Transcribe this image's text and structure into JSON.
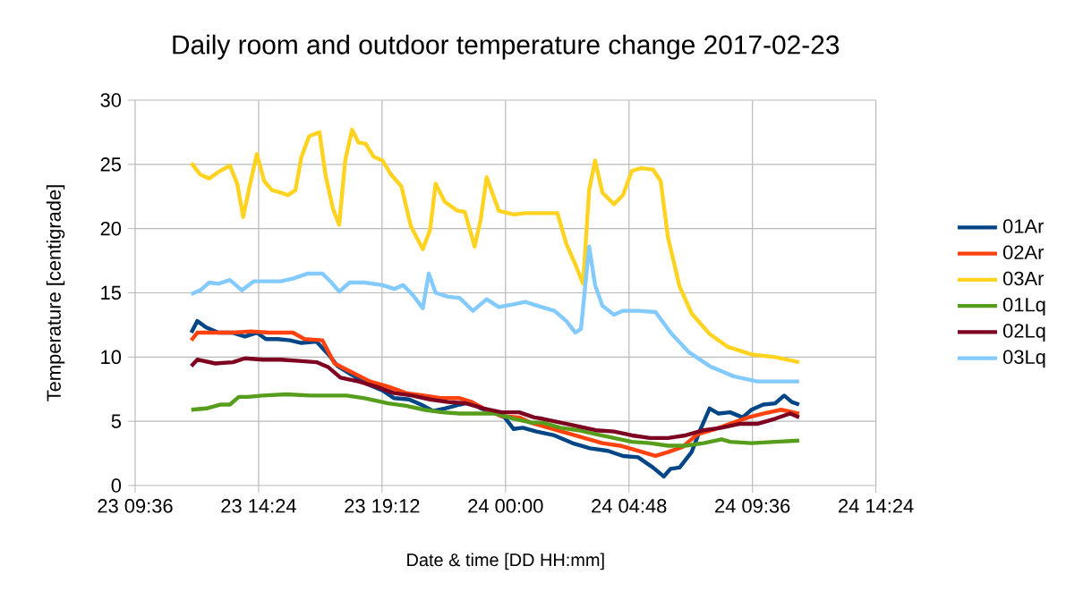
{
  "chart_data": {
    "type": "line",
    "title": "Daily room and outdoor temperature change 2017-02-23",
    "xlabel": "Date & time [DD HH:mm]",
    "ylabel": "Temperature [centigrade]",
    "xlim": [
      "2017-02-23T09:36",
      "2017-02-24T14:24"
    ],
    "ylim": [
      0,
      30
    ],
    "xticks": [
      {
        "value": "2017-02-23T09:36",
        "label": "23 09:36"
      },
      {
        "value": "2017-02-23T14:24",
        "label": "23 14:24"
      },
      {
        "value": "2017-02-23T19:12",
        "label": "23 19:12"
      },
      {
        "value": "2017-02-24T00:00",
        "label": "24 00:00"
      },
      {
        "value": "2017-02-24T04:48",
        "label": "24 04:48"
      },
      {
        "value": "2017-02-24T09:36",
        "label": "24 09:36"
      },
      {
        "value": "2017-02-24T14:24",
        "label": "24 14:24"
      }
    ],
    "yticks": [
      0,
      5,
      10,
      15,
      20,
      25,
      30
    ],
    "grid": true,
    "legend": "right",
    "line_style": "solid",
    "series": [
      {
        "name": "01Ar",
        "color": "#004586",
        "x": [
          "2017-02-23T11:47",
          "2017-02-23T12:01",
          "2017-02-23T12:22",
          "2017-02-23T12:50",
          "2017-02-23T13:24",
          "2017-02-23T13:52",
          "2017-02-23T14:20",
          "2017-02-23T14:41",
          "2017-02-23T15:09",
          "2017-02-23T15:37",
          "2017-02-23T16:04",
          "2017-02-23T16:39",
          "2017-02-23T17:07",
          "2017-02-23T17:28",
          "2017-02-23T18:02",
          "2017-02-23T18:37",
          "2017-02-23T19:13",
          "2017-02-23T19:40",
          "2017-02-23T20:15",
          "2017-02-23T20:43",
          "2017-02-23T21:11",
          "2017-02-23T21:38",
          "2017-02-23T22:13",
          "2017-02-23T22:41",
          "2017-02-23T23:02",
          "2017-02-23T23:37",
          "2017-02-23T23:58",
          "2017-02-24T00:19",
          "2017-02-24T00:40",
          "2017-02-24T01:12",
          "2017-02-24T01:54",
          "2017-02-24T02:36",
          "2017-02-24T03:17",
          "2017-02-24T03:59",
          "2017-02-24T04:34",
          "2017-02-24T05:09",
          "2017-02-24T05:44",
          "2017-02-24T06:09",
          "2017-02-24T06:25",
          "2017-02-24T06:46",
          "2017-02-24T07:14",
          "2017-02-24T07:35",
          "2017-02-24T07:56",
          "2017-02-24T08:17",
          "2017-02-24T08:44",
          "2017-02-24T09:13",
          "2017-02-24T09:34",
          "2017-02-24T10:01",
          "2017-02-24T10:29",
          "2017-02-24T10:50",
          "2017-02-24T11:08",
          "2017-02-24T11:25"
        ],
        "values": [
          11.9,
          12.8,
          12.3,
          11.9,
          11.9,
          11.6,
          11.9,
          11.4,
          11.4,
          11.3,
          11.1,
          11.2,
          10.2,
          9.3,
          8.6,
          7.9,
          7.4,
          6.8,
          6.7,
          6.3,
          5.8,
          6.0,
          6.3,
          6.5,
          6.0,
          5.6,
          5.3,
          4.4,
          4.5,
          4.2,
          3.9,
          3.3,
          2.9,
          2.7,
          2.3,
          2.2,
          1.4,
          0.7,
          1.3,
          1.4,
          2.6,
          4.4,
          6.0,
          5.6,
          5.7,
          5.3,
          5.9,
          6.3,
          6.4,
          7.0,
          6.5,
          6.3
        ]
      },
      {
        "name": "02Ar",
        "color": "#ff420e",
        "x": [
          "2017-02-23T11:47",
          "2017-02-23T12:01",
          "2017-02-23T12:43",
          "2017-02-23T13:24",
          "2017-02-23T14:06",
          "2017-02-23T14:48",
          "2017-02-23T15:44",
          "2017-02-23T16:11",
          "2017-02-23T16:53",
          "2017-02-23T17:21",
          "2017-02-23T18:02",
          "2017-02-23T18:44",
          "2017-02-23T19:26",
          "2017-02-23T20:08",
          "2017-02-23T20:50",
          "2017-02-23T21:32",
          "2017-02-23T22:13",
          "2017-02-23T22:41",
          "2017-02-23T23:09",
          "2017-02-23T23:51",
          "2017-02-24T00:32",
          "2017-02-24T00:58",
          "2017-02-24T01:40",
          "2017-02-24T02:22",
          "2017-02-24T03:04",
          "2017-02-24T03:46",
          "2017-02-24T04:27",
          "2017-02-24T05:09",
          "2017-02-24T05:50",
          "2017-02-24T06:19",
          "2017-02-24T06:53",
          "2017-02-24T07:28",
          "2017-02-24T08:10",
          "2017-02-24T08:52",
          "2017-02-24T09:26",
          "2017-02-24T10:01",
          "2017-02-24T10:43",
          "2017-02-24T11:25"
        ],
        "values": [
          11.3,
          11.9,
          11.9,
          11.9,
          12.0,
          11.9,
          11.9,
          11.4,
          11.3,
          9.5,
          8.8,
          8.1,
          7.7,
          7.2,
          7.0,
          6.8,
          6.8,
          6.5,
          6.0,
          5.4,
          5.3,
          4.9,
          4.5,
          4.1,
          3.7,
          3.3,
          3.1,
          2.7,
          2.3,
          2.6,
          3.0,
          4.0,
          4.4,
          4.9,
          5.3,
          5.6,
          5.9,
          5.6
        ]
      },
      {
        "name": "03Ar",
        "color": "#ffd320",
        "x": [
          "2017-02-23T11:47",
          "2017-02-23T12:08",
          "2017-02-23T12:29",
          "2017-02-23T12:50",
          "2017-02-23T13:17",
          "2017-02-23T13:34",
          "2017-02-23T13:48",
          "2017-02-23T14:03",
          "2017-02-23T14:20",
          "2017-02-23T14:37",
          "2017-02-23T14:55",
          "2017-02-23T15:16",
          "2017-02-23T15:32",
          "2017-02-23T15:50",
          "2017-02-23T16:04",
          "2017-02-23T16:22",
          "2017-02-23T16:46",
          "2017-02-23T17:00",
          "2017-02-23T17:17",
          "2017-02-23T17:32",
          "2017-02-23T17:46",
          "2017-02-23T18:02",
          "2017-02-23T18:17",
          "2017-02-23T18:34",
          "2017-02-23T18:52",
          "2017-02-23T19:13",
          "2017-02-23T19:33",
          "2017-02-23T19:57",
          "2017-02-23T20:19",
          "2017-02-23T20:47",
          "2017-02-23T21:04",
          "2017-02-23T21:17",
          "2017-02-23T21:38",
          "2017-02-23T22:07",
          "2017-02-23T22:25",
          "2017-02-23T22:48",
          "2017-02-23T23:02",
          "2017-02-23T23:16",
          "2017-02-23T23:44",
          "2017-02-24T00:19",
          "2017-02-24T00:46",
          "2017-02-24T01:14",
          "2017-02-24T02:01",
          "2017-02-24T02:22",
          "2017-02-24T02:43",
          "2017-02-24T03:01",
          "2017-02-24T03:15",
          "2017-02-24T03:29",
          "2017-02-24T03:46",
          "2017-02-24T04:13",
          "2017-02-24T04:34",
          "2017-02-24T04:55",
          "2017-02-24T05:16",
          "2017-02-24T05:44",
          "2017-02-24T06:02",
          "2017-02-24T06:19",
          "2017-02-24T06:46",
          "2017-02-24T07:14",
          "2017-02-24T07:56",
          "2017-02-24T08:38",
          "2017-02-24T09:34",
          "2017-02-24T10:29",
          "2017-02-24T11:25"
        ],
        "values": [
          25.1,
          24.2,
          23.9,
          24.4,
          24.9,
          23.5,
          20.9,
          23.3,
          25.8,
          23.7,
          23.0,
          22.8,
          22.6,
          23.0,
          25.6,
          27.2,
          27.5,
          24.2,
          21.6,
          20.3,
          25.3,
          27.7,
          26.7,
          26.6,
          25.6,
          25.3,
          24.2,
          23.3,
          20.2,
          18.4,
          19.9,
          23.5,
          22.1,
          21.4,
          21.3,
          18.6,
          20.7,
          24.0,
          21.4,
          21.1,
          21.2,
          21.2,
          21.2,
          18.8,
          17.2,
          15.7,
          23.0,
          25.3,
          22.8,
          21.9,
          22.6,
          24.5,
          24.7,
          24.6,
          23.7,
          19.3,
          15.5,
          13.4,
          11.8,
          10.8,
          10.2,
          10.0,
          9.6
        ]
      },
      {
        "name": "01Lq",
        "color": "#579d1c",
        "x": [
          "2017-02-23T11:47",
          "2017-02-23T12:22",
          "2017-02-23T12:56",
          "2017-02-23T13:17",
          "2017-02-23T13:38",
          "2017-02-23T13:59",
          "2017-02-23T14:34",
          "2017-02-23T15:29",
          "2017-02-23T16:25",
          "2017-02-23T17:07",
          "2017-02-23T17:49",
          "2017-02-23T18:31",
          "2017-02-23T18:58",
          "2017-02-23T19:26",
          "2017-02-23T20:08",
          "2017-02-23T20:50",
          "2017-02-23T21:32",
          "2017-02-23T22:13",
          "2017-02-23T22:55",
          "2017-02-23T23:37",
          "2017-02-24T00:19",
          "2017-02-24T01:01",
          "2017-02-24T01:26",
          "2017-02-24T02:08",
          "2017-02-24T02:50",
          "2017-02-24T03:31",
          "2017-02-24T04:13",
          "2017-02-24T04:55",
          "2017-02-24T05:37",
          "2017-02-24T06:19",
          "2017-02-24T07:00",
          "2017-02-24T07:42",
          "2017-02-24T08:24",
          "2017-02-24T08:44",
          "2017-02-24T09:34",
          "2017-02-24T10:29",
          "2017-02-24T11:25"
        ],
        "values": [
          5.9,
          6.0,
          6.3,
          6.3,
          6.9,
          6.9,
          7.0,
          7.1,
          7.0,
          7.0,
          7.0,
          6.8,
          6.6,
          6.4,
          6.2,
          5.9,
          5.7,
          5.6,
          5.6,
          5.6,
          5.2,
          4.9,
          4.9,
          4.5,
          4.3,
          4.0,
          3.7,
          3.4,
          3.3,
          3.1,
          3.1,
          3.3,
          3.6,
          3.4,
          3.3,
          3.4,
          3.5
        ]
      },
      {
        "name": "02Lq",
        "color": "#7e0021",
        "x": [
          "2017-02-23T11:47",
          "2017-02-23T12:01",
          "2017-02-23T12:43",
          "2017-02-23T13:24",
          "2017-02-23T13:52",
          "2017-02-23T14:34",
          "2017-02-23T15:16",
          "2017-02-23T15:58",
          "2017-02-23T16:39",
          "2017-02-23T17:07",
          "2017-02-23T17:35",
          "2017-02-23T18:17",
          "2017-02-23T18:58",
          "2017-02-23T19:40",
          "2017-02-23T20:22",
          "2017-02-23T21:04",
          "2017-02-23T21:46",
          "2017-02-23T22:28",
          "2017-02-23T23:09",
          "2017-02-23T23:51",
          "2017-02-24T00:32",
          "2017-02-24T01:07",
          "2017-02-24T01:26",
          "2017-02-24T02:08",
          "2017-02-24T02:50",
          "2017-02-24T03:31",
          "2017-02-24T04:13",
          "2017-02-24T04:55",
          "2017-02-24T05:37",
          "2017-02-24T06:19",
          "2017-02-24T07:00",
          "2017-02-24T07:42",
          "2017-02-24T08:24",
          "2017-02-24T09:05",
          "2017-02-24T09:47",
          "2017-02-24T10:29",
          "2017-02-24T11:04",
          "2017-02-24T11:25"
        ],
        "values": [
          9.3,
          9.8,
          9.5,
          9.6,
          9.9,
          9.8,
          9.8,
          9.7,
          9.6,
          9.2,
          8.4,
          8.1,
          7.7,
          7.2,
          7.0,
          6.7,
          6.5,
          6.4,
          6.0,
          5.7,
          5.7,
          5.3,
          5.2,
          4.9,
          4.6,
          4.3,
          4.2,
          3.9,
          3.7,
          3.7,
          3.9,
          4.3,
          4.5,
          4.8,
          4.8,
          5.2,
          5.6,
          5.3
        ]
      },
      {
        "name": "03Lq",
        "color": "#83caff",
        "x": [
          "2017-02-23T11:47",
          "2017-02-23T12:08",
          "2017-02-23T12:29",
          "2017-02-23T12:50",
          "2017-02-23T13:17",
          "2017-02-23T13:45",
          "2017-02-23T14:13",
          "2017-02-23T14:41",
          "2017-02-23T15:16",
          "2017-02-23T15:44",
          "2017-02-23T16:19",
          "2017-02-23T16:53",
          "2017-02-23T17:14",
          "2017-02-23T17:32",
          "2017-02-23T17:56",
          "2017-02-23T18:31",
          "2017-02-23T19:13",
          "2017-02-23T19:40",
          "2017-02-23T20:01",
          "2017-02-23T20:22",
          "2017-02-23T20:47",
          "2017-02-23T21:01",
          "2017-02-23T21:17",
          "2017-02-23T21:46",
          "2017-02-23T22:13",
          "2017-02-23T22:44",
          "2017-02-23T23:16",
          "2017-02-23T23:44",
          "2017-02-24T00:19",
          "2017-02-24T00:46",
          "2017-02-24T01:14",
          "2017-02-24T01:54",
          "2017-02-24T02:22",
          "2017-02-24T02:43",
          "2017-02-24T02:56",
          "2017-02-24T03:15",
          "2017-02-24T03:29",
          "2017-02-24T03:46",
          "2017-02-24T04:13",
          "2017-02-24T04:34",
          "2017-02-24T05:09",
          "2017-02-24T05:50",
          "2017-02-24T06:25",
          "2017-02-24T07:07",
          "2017-02-24T07:56",
          "2017-02-24T08:52",
          "2017-02-24T09:47",
          "2017-02-24T11:25"
        ],
        "values": [
          14.9,
          15.2,
          15.8,
          15.7,
          16.0,
          15.2,
          15.9,
          15.9,
          15.9,
          16.1,
          16.5,
          16.5,
          15.8,
          15.1,
          15.8,
          15.8,
          15.6,
          15.3,
          15.6,
          14.9,
          13.8,
          16.5,
          15.0,
          14.7,
          14.6,
          13.6,
          14.5,
          13.9,
          14.1,
          14.3,
          14.0,
          13.6,
          12.8,
          11.9,
          12.2,
          18.6,
          15.6,
          14.0,
          13.3,
          13.6,
          13.6,
          13.5,
          11.9,
          10.4,
          9.3,
          8.5,
          8.1,
          8.1
        ]
      }
    ]
  }
}
